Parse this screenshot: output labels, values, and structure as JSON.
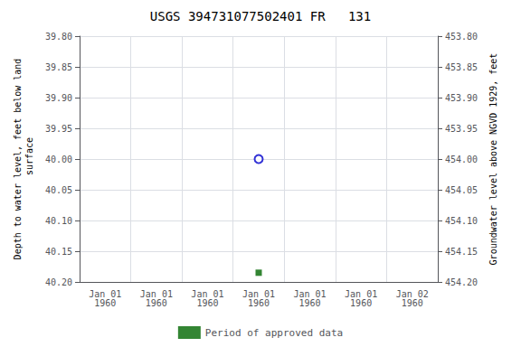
{
  "chart_data": {
    "type": "scatter",
    "title": "USGS 394731077502401 FR   131",
    "ylabel": "Depth to water level, feet below land\n surface",
    "y2label": "Groundwater level above NGVD 1929, feet",
    "categories": [
      "Jan 01\n1960",
      "Jan 01\n1960",
      "Jan 01\n1960",
      "Jan 01\n1960",
      "Jan 01\n1960",
      "Jan 01\n1960",
      "Jan 02\n1960"
    ],
    "series": [
      {
        "color": "#0000cc",
        "marker": "open-circle",
        "values": [
          null,
          null,
          null,
          40.0,
          null,
          null,
          null
        ]
      },
      {
        "name": "Period of approved data",
        "color": "#006600",
        "marker": "square",
        "values": [
          null,
          null,
          null,
          40.185,
          null,
          null,
          null
        ]
      }
    ],
    "ylim": [
      40.2,
      39.8
    ],
    "yticks": [
      {
        "value": 39.8,
        "label": "39.80"
      },
      {
        "value": 39.85,
        "label": "39.85"
      },
      {
        "value": 39.9,
        "label": "39.90"
      },
      {
        "value": 39.95,
        "label": "39.95"
      },
      {
        "value": 40.0,
        "label": "40.00"
      },
      {
        "value": 40.05,
        "label": "40.05"
      },
      {
        "value": 40.1,
        "label": "40.10"
      },
      {
        "value": 40.15,
        "label": "40.15"
      },
      {
        "value": 40.2,
        "label": "40.20"
      }
    ],
    "y2lim": [
      454.2,
      453.8
    ],
    "y2ticks": [
      {
        "value": 454.2,
        "label": "454.20"
      },
      {
        "value": 454.15,
        "label": "454.15"
      },
      {
        "value": 454.1,
        "label": "454.10"
      },
      {
        "value": 454.05,
        "label": "454.05"
      },
      {
        "value": 454.0,
        "label": "454.00"
      },
      {
        "value": 453.95,
        "label": "453.95"
      },
      {
        "value": 453.9,
        "label": "453.90"
      },
      {
        "value": 453.85,
        "label": "453.85"
      },
      {
        "value": 453.8,
        "label": "453.80"
      }
    ],
    "grid": true,
    "legend": "bottom"
  }
}
